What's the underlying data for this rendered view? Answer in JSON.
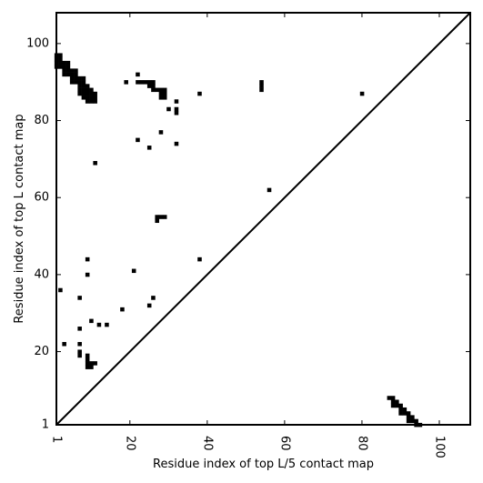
{
  "chart_data": {
    "type": "heatmap",
    "title": "",
    "xlabel": "Residue index of top L/5 contact map",
    "ylabel": "Residue index of top L contact map",
    "xlim": [
      1,
      108
    ],
    "ylim": [
      1,
      108
    ],
    "x_ticks": [
      1,
      20,
      40,
      60,
      80,
      100
    ],
    "y_ticks": [
      1,
      20,
      40,
      60,
      80,
      100
    ],
    "x_tick_labels": [
      "1",
      "20",
      "40",
      "60",
      "80",
      "100"
    ],
    "y_tick_labels": [
      "1",
      "20",
      "40",
      "60",
      "80",
      "100"
    ],
    "x_tick_rotation": "vertical",
    "diagonal_line": true,
    "grid": false,
    "cell_color": "#000000",
    "upper_triangle_contacts": [
      {
        "x": 1,
        "y": 97
      },
      {
        "x": 2,
        "y": 97
      },
      {
        "x": 1,
        "y": 96
      },
      {
        "x": 2,
        "y": 96
      },
      {
        "x": 1,
        "y": 95
      },
      {
        "x": 2,
        "y": 95
      },
      {
        "x": 3,
        "y": 95
      },
      {
        "x": 4,
        "y": 95
      },
      {
        "x": 1,
        "y": 94
      },
      {
        "x": 2,
        "y": 94
      },
      {
        "x": 3,
        "y": 94
      },
      {
        "x": 4,
        "y": 94
      },
      {
        "x": 3,
        "y": 93
      },
      {
        "x": 4,
        "y": 93
      },
      {
        "x": 5,
        "y": 93
      },
      {
        "x": 6,
        "y": 93
      },
      {
        "x": 3,
        "y": 92
      },
      {
        "x": 4,
        "y": 92
      },
      {
        "x": 5,
        "y": 92
      },
      {
        "x": 6,
        "y": 92
      },
      {
        "x": 5,
        "y": 91
      },
      {
        "x": 6,
        "y": 91
      },
      {
        "x": 7,
        "y": 91
      },
      {
        "x": 8,
        "y": 91
      },
      {
        "x": 5,
        "y": 90
      },
      {
        "x": 6,
        "y": 90
      },
      {
        "x": 7,
        "y": 90
      },
      {
        "x": 8,
        "y": 90
      },
      {
        "x": 7,
        "y": 89
      },
      {
        "x": 8,
        "y": 89
      },
      {
        "x": 9,
        "y": 89
      },
      {
        "x": 7,
        "y": 88
      },
      {
        "x": 8,
        "y": 88
      },
      {
        "x": 9,
        "y": 88
      },
      {
        "x": 10,
        "y": 88
      },
      {
        "x": 7,
        "y": 87
      },
      {
        "x": 8,
        "y": 87
      },
      {
        "x": 9,
        "y": 87
      },
      {
        "x": 10,
        "y": 87
      },
      {
        "x": 11,
        "y": 87
      },
      {
        "x": 8,
        "y": 86
      },
      {
        "x": 9,
        "y": 86
      },
      {
        "x": 10,
        "y": 86
      },
      {
        "x": 11,
        "y": 86
      },
      {
        "x": 9,
        "y": 85
      },
      {
        "x": 10,
        "y": 85
      },
      {
        "x": 11,
        "y": 85
      },
      {
        "x": 19,
        "y": 90
      },
      {
        "x": 22,
        "y": 92
      },
      {
        "x": 22,
        "y": 90
      },
      {
        "x": 23,
        "y": 90
      },
      {
        "x": 24,
        "y": 90
      },
      {
        "x": 25,
        "y": 90
      },
      {
        "x": 26,
        "y": 90
      },
      {
        "x": 25,
        "y": 89
      },
      {
        "x": 26,
        "y": 89
      },
      {
        "x": 26,
        "y": 88
      },
      {
        "x": 27,
        "y": 88
      },
      {
        "x": 28,
        "y": 88
      },
      {
        "x": 29,
        "y": 88
      },
      {
        "x": 28,
        "y": 87
      },
      {
        "x": 29,
        "y": 87
      },
      {
        "x": 28,
        "y": 86
      },
      {
        "x": 29,
        "y": 86
      },
      {
        "x": 32,
        "y": 85
      },
      {
        "x": 30,
        "y": 83
      },
      {
        "x": 32,
        "y": 83
      },
      {
        "x": 32,
        "y": 82
      },
      {
        "x": 38,
        "y": 87
      },
      {
        "x": 54,
        "y": 90
      },
      {
        "x": 54,
        "y": 89
      },
      {
        "x": 54,
        "y": 88
      },
      {
        "x": 80,
        "y": 87
      },
      {
        "x": 28,
        "y": 77
      },
      {
        "x": 22,
        "y": 75
      },
      {
        "x": 32,
        "y": 74
      },
      {
        "x": 25,
        "y": 73
      },
      {
        "x": 11,
        "y": 69
      },
      {
        "x": 56,
        "y": 62
      },
      {
        "x": 27,
        "y": 55
      },
      {
        "x": 28,
        "y": 55
      },
      {
        "x": 29,
        "y": 55
      },
      {
        "x": 27,
        "y": 54
      },
      {
        "x": 9,
        "y": 44
      },
      {
        "x": 38,
        "y": 44
      },
      {
        "x": 21,
        "y": 41
      },
      {
        "x": 9,
        "y": 40
      },
      {
        "x": 2,
        "y": 36
      },
      {
        "x": 7,
        "y": 34
      },
      {
        "x": 26,
        "y": 34
      },
      {
        "x": 25,
        "y": 32
      },
      {
        "x": 18,
        "y": 31
      },
      {
        "x": 10,
        "y": 28
      },
      {
        "x": 12,
        "y": 27
      },
      {
        "x": 14,
        "y": 27
      },
      {
        "x": 7,
        "y": 26
      },
      {
        "x": 3,
        "y": 22
      },
      {
        "x": 7,
        "y": 22
      },
      {
        "x": 7,
        "y": 20
      },
      {
        "x": 7,
        "y": 19
      },
      {
        "x": 9,
        "y": 19
      },
      {
        "x": 9,
        "y": 18
      },
      {
        "x": 9,
        "y": 17
      },
      {
        "x": 10,
        "y": 17
      },
      {
        "x": 11,
        "y": 17
      },
      {
        "x": 9,
        "y": 16
      },
      {
        "x": 10,
        "y": 16
      }
    ],
    "lower_triangle_contacts": [
      {
        "x": 87,
        "y": 8
      },
      {
        "x": 88,
        "y": 8
      },
      {
        "x": 88,
        "y": 7
      },
      {
        "x": 89,
        "y": 7
      },
      {
        "x": 88,
        "y": 6
      },
      {
        "x": 89,
        "y": 6
      },
      {
        "x": 90,
        "y": 6
      },
      {
        "x": 90,
        "y": 5
      },
      {
        "x": 91,
        "y": 5
      },
      {
        "x": 90,
        "y": 4
      },
      {
        "x": 91,
        "y": 4
      },
      {
        "x": 92,
        "y": 4
      },
      {
        "x": 92,
        "y": 3
      },
      {
        "x": 93,
        "y": 3
      },
      {
        "x": 92,
        "y": 2
      },
      {
        "x": 93,
        "y": 2
      },
      {
        "x": 94,
        "y": 2
      },
      {
        "x": 94,
        "y": 1
      },
      {
        "x": 95,
        "y": 1
      }
    ]
  }
}
